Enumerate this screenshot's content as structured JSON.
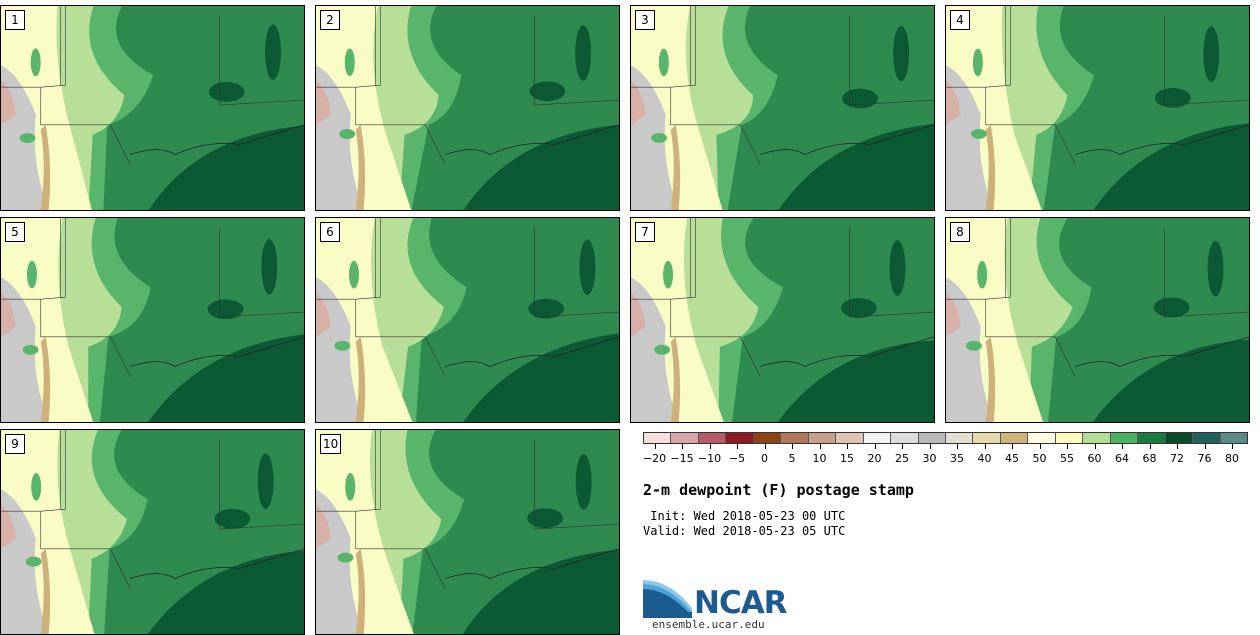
{
  "panels": [
    {
      "label": "1"
    },
    {
      "label": "2"
    },
    {
      "label": "3"
    },
    {
      "label": "4"
    },
    {
      "label": "5"
    },
    {
      "label": "6"
    },
    {
      "label": "7"
    },
    {
      "label": "8"
    },
    {
      "label": "9"
    },
    {
      "label": "10"
    }
  ],
  "map_colors": {
    "deep_green": "#0b5a33",
    "green": "#2f8a4f",
    "mid_green": "#58b56b",
    "light_green": "#b7df98",
    "pale_yellow": "#fafcc6",
    "cream": "#fffde0",
    "tan": "#cdb07a",
    "gray": "#c9c9c9",
    "pink": "#d7b0a8"
  },
  "colorbar": {
    "colors": [
      "#f5dede",
      "#d7a6a6",
      "#b35e68",
      "#8a1a22",
      "#8b4513",
      "#b07a5a",
      "#c79f8a",
      "#dfc4b4",
      "#f2f2f2",
      "#dcdcdc",
      "#b8b8b8",
      "#e2e0d0",
      "#e6d8a8",
      "#cfb47a",
      "#fffde2",
      "#fafcc0",
      "#b4df98",
      "#4cb262",
      "#1a7a40",
      "#0a4a28",
      "#23605e",
      "#5a8a8a"
    ],
    "ticks": [
      "−20",
      "−15",
      "−10",
      "−5",
      "0",
      "5",
      "10",
      "15",
      "20",
      "25",
      "30",
      "35",
      "40",
      "45",
      "50",
      "55",
      "60",
      "64",
      "68",
      "72",
      "76",
      "80"
    ]
  },
  "title": "2-m dewpoint (F) postage stamp",
  "init": " Init: Wed 2018-05-23 00 UTC",
  "valid": "Valid: Wed 2018-05-23 05 UTC",
  "logo": {
    "name": "NCAR",
    "url": "ensemble.ucar.edu"
  }
}
